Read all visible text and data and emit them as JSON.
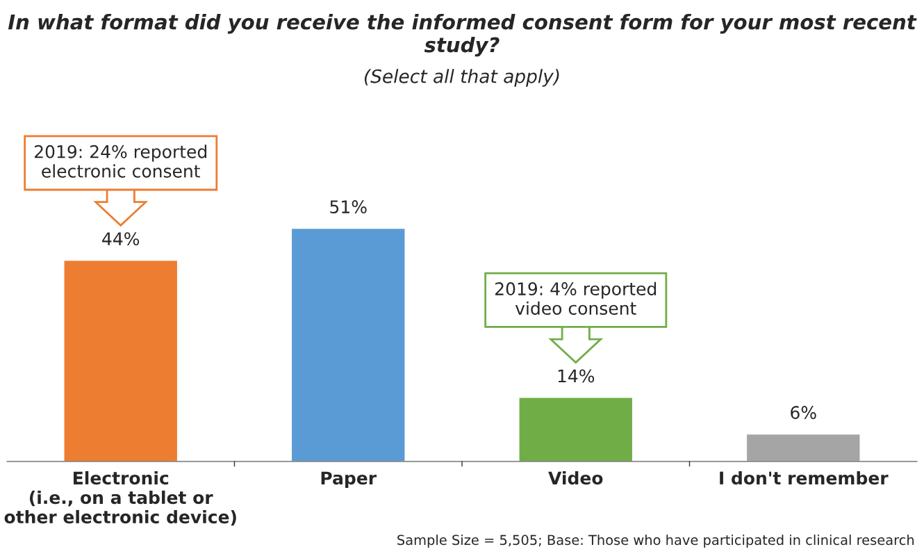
{
  "chart_data": {
    "type": "bar",
    "title": "In what format did you receive the informed consent form for your most recent study?",
    "subtitle": "(Select all that apply)",
    "categories": [
      "Electronic\n(i.e., on a tablet or\nother electronic device)",
      "Paper",
      "Video",
      "I don't remember"
    ],
    "values": [
      44,
      51,
      14,
      6
    ],
    "colors": [
      "#ed7d31",
      "#5b9bd5",
      "#70ad47",
      "#a5a5a5"
    ],
    "data_labels": true,
    "value_labels": [
      "44%",
      "51%",
      "14%",
      "6%"
    ],
    "annotations": [
      "2019: 24% reported\nelectronic consent",
      "2019: 4% reported\nvideo consent",
      "Sample Size = 5,505; Base: Those who have participated in clinical research"
    ],
    "grid": false,
    "legend": false
  }
}
